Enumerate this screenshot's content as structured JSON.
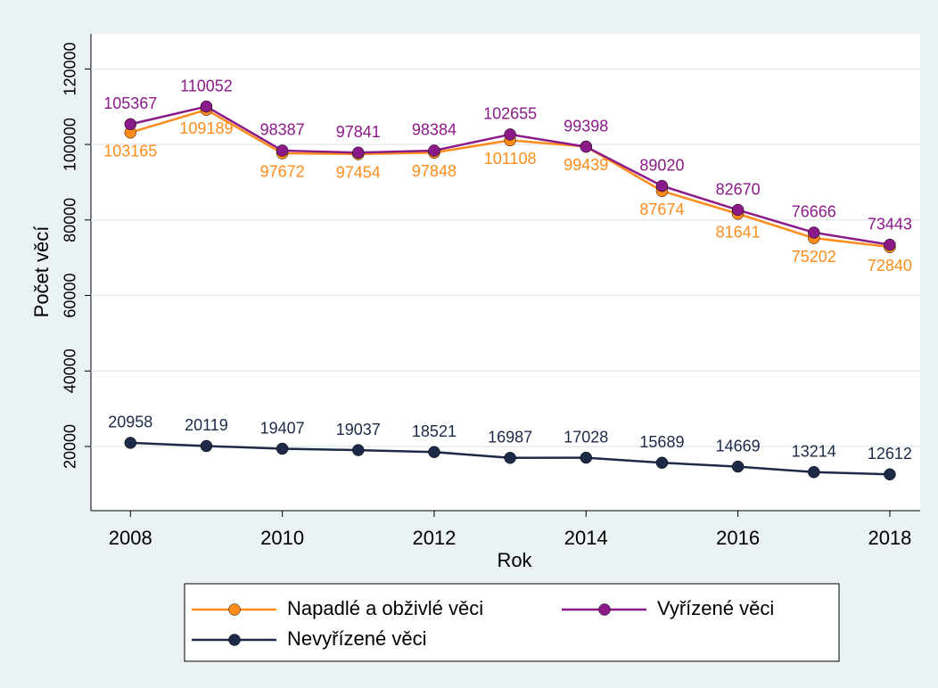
{
  "chart_data": {
    "type": "line",
    "x_label": "Rok",
    "y_label": "Počet věcí",
    "x": [
      2008,
      2009,
      2010,
      2011,
      2012,
      2013,
      2014,
      2015,
      2016,
      2017,
      2018
    ],
    "series": [
      {
        "name": "Napadlé a obživlé věci",
        "color": "#ff8c1a",
        "values": [
          103165,
          109189,
          97672,
          97454,
          97848,
          101108,
          99439,
          87674,
          81641,
          75202,
          72840
        ]
      },
      {
        "name": "Vyřízené věci",
        "color": "#8b1a89",
        "values": [
          105367,
          110052,
          98387,
          97841,
          98384,
          102655,
          99398,
          89020,
          82670,
          76666,
          73443
        ]
      },
      {
        "name": "Nevyřízené věci",
        "color": "#1c2a48",
        "values": [
          20958,
          20119,
          19407,
          19037,
          18521,
          16987,
          17028,
          15689,
          14669,
          13214,
          12612
        ]
      }
    ],
    "xlim": [
      2007.48,
      2018.4
    ],
    "xticks": [
      2008,
      2010,
      2012,
      2014,
      2016,
      2018
    ],
    "ylim": [
      3000,
      129300
    ],
    "yticks": [
      20000,
      40000,
      60000,
      80000,
      100000,
      120000
    ],
    "grid": true
  }
}
